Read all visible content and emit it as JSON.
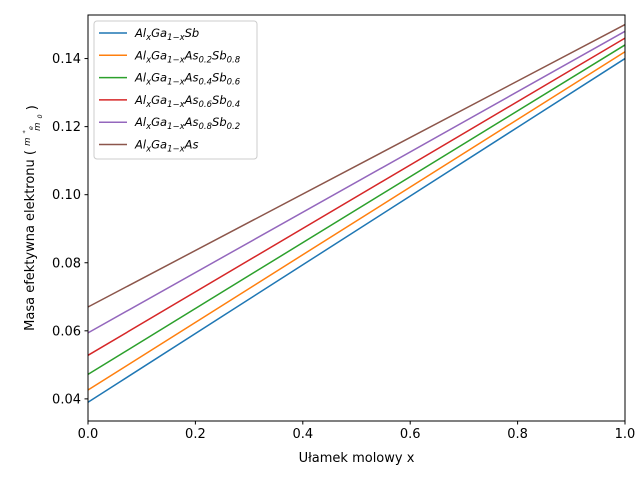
{
  "chart_data": {
    "type": "line",
    "title": "",
    "xlabel": "Ułamek molowy x",
    "ylabel": {
      "main": "Masa efektywna elektronu (",
      "num_base": "m",
      "num_sub": "e",
      "num_sup": "*",
      "den_base": "m",
      "den_sub": "0",
      "close": ")"
    },
    "xlim": [
      0.0,
      1.0
    ],
    "ylim": [
      0.0335,
      0.1528
    ],
    "xticks": [
      0.0,
      0.2,
      0.4,
      0.6,
      0.8,
      1.0
    ],
    "xtick_labels": [
      "0.0",
      "0.2",
      "0.4",
      "0.6",
      "0.8",
      "1.0"
    ],
    "yticks": [
      0.04,
      0.06,
      0.08,
      0.1,
      0.12,
      0.14
    ],
    "ytick_labels": [
      "0.04",
      "0.06",
      "0.08",
      "0.10",
      "0.12",
      "0.14"
    ],
    "grid": false,
    "legend_position": "top-left",
    "x": [
      0.0,
      1.0
    ],
    "series": [
      {
        "name": "AlxGa1−xSb",
        "label_parts": [
          [
            "Al",
            ""
          ],
          [
            "x",
            "sub"
          ],
          [
            "Ga",
            ""
          ],
          [
            "1−x",
            "sub"
          ],
          [
            "Sb",
            ""
          ]
        ],
        "color": "#1f77b4",
        "values": [
          0.039,
          0.14
        ]
      },
      {
        "name": "AlxGa1−xAs0.2Sb0.8",
        "label_parts": [
          [
            "Al",
            ""
          ],
          [
            "x",
            "sub"
          ],
          [
            "Ga",
            ""
          ],
          [
            "1−x",
            "sub"
          ],
          [
            "As",
            ""
          ],
          [
            "0.2",
            "sub"
          ],
          [
            "Sb",
            ""
          ],
          [
            "0.8",
            "sub"
          ]
        ],
        "color": "#ff7f0e",
        "values": [
          0.0426,
          0.142
        ]
      },
      {
        "name": "AlxGa1−xAs0.4Sb0.6",
        "label_parts": [
          [
            "Al",
            ""
          ],
          [
            "x",
            "sub"
          ],
          [
            "Ga",
            ""
          ],
          [
            "1−x",
            "sub"
          ],
          [
            "As",
            ""
          ],
          [
            "0.4",
            "sub"
          ],
          [
            "Sb",
            ""
          ],
          [
            "0.6",
            "sub"
          ]
        ],
        "color": "#2ca02c",
        "values": [
          0.0472,
          0.144
        ]
      },
      {
        "name": "AlxGa1−xAs0.6Sb0.4",
        "label_parts": [
          [
            "Al",
            ""
          ],
          [
            "x",
            "sub"
          ],
          [
            "Ga",
            ""
          ],
          [
            "1−x",
            "sub"
          ],
          [
            "As",
            ""
          ],
          [
            "0.6",
            "sub"
          ],
          [
            "Sb",
            ""
          ],
          [
            "0.4",
            "sub"
          ]
        ],
        "color": "#d62728",
        "values": [
          0.0528,
          0.146
        ]
      },
      {
        "name": "AlxGa1−xAs0.8Sb0.2",
        "label_parts": [
          [
            "Al",
            ""
          ],
          [
            "x",
            "sub"
          ],
          [
            "Ga",
            ""
          ],
          [
            "1−x",
            "sub"
          ],
          [
            "As",
            ""
          ],
          [
            "0.8",
            "sub"
          ],
          [
            "Sb",
            ""
          ],
          [
            "0.2",
            "sub"
          ]
        ],
        "color": "#9467bd",
        "values": [
          0.0594,
          0.148
        ]
      },
      {
        "name": "AlxGa1−xAs",
        "label_parts": [
          [
            "Al",
            ""
          ],
          [
            "x",
            "sub"
          ],
          [
            "Ga",
            ""
          ],
          [
            "1−x",
            "sub"
          ],
          [
            "As",
            ""
          ]
        ],
        "color": "#8c564b",
        "values": [
          0.067,
          0.15
        ]
      }
    ]
  }
}
